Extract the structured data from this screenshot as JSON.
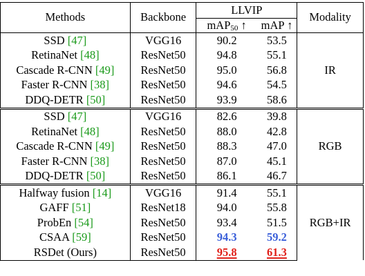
{
  "header": {
    "methods": "Methods",
    "backbone": "Backbone",
    "llvip": "LLVIP",
    "ap50_prefix": "mAP",
    "ap50_sub": "50",
    "ap50_arrow": " ↑",
    "map": "mAP ↑",
    "modality": "Modality"
  },
  "groups": [
    {
      "modality": "IR",
      "rows": [
        {
          "method": "SSD",
          "cite": "[47]",
          "backbone": "VGG16",
          "ap50": "90.2",
          "map": "53.5"
        },
        {
          "method": "RetinaNet",
          "cite": "[48]",
          "backbone": "ResNet50",
          "ap50": "94.8",
          "map": "55.1"
        },
        {
          "method": "Cascade R-CNN",
          "cite": "[49]",
          "backbone": "ResNet50",
          "ap50": "95.0",
          "map": "56.8"
        },
        {
          "method": "Faster R-CNN",
          "cite": "[38]",
          "backbone": "ResNet50",
          "ap50": "94.6",
          "map": "54.5"
        },
        {
          "method": "DDQ-DETR",
          "cite": "[50]",
          "backbone": "ResNet50",
          "ap50": "93.9",
          "map": "58.6"
        }
      ]
    },
    {
      "modality": "RGB",
      "rows": [
        {
          "method": "SSD",
          "cite": "[47]",
          "backbone": "VGG16",
          "ap50": "82.6",
          "map": "39.8"
        },
        {
          "method": "RetinaNet",
          "cite": "[48]",
          "backbone": "ResNet50",
          "ap50": "88.0",
          "map": "42.8"
        },
        {
          "method": "Cascade R-CNN",
          "cite": "[49]",
          "backbone": "ResNet50",
          "ap50": "88.3",
          "map": "47.0"
        },
        {
          "method": "Faster R-CNN",
          "cite": "[38]",
          "backbone": "ResNet50",
          "ap50": "87.0",
          "map": "45.1"
        },
        {
          "method": "DDQ-DETR",
          "cite": "[50]",
          "backbone": "ResNet50",
          "ap50": "86.1",
          "map": "46.7"
        }
      ]
    },
    {
      "modality": "RGB+IR",
      "rows": [
        {
          "method": "Halfway fusion",
          "cite": "[14]",
          "backbone": "VGG16",
          "ap50": "91.4",
          "map": "55.1"
        },
        {
          "method": "GAFF",
          "cite": "[51]",
          "backbone": "ResNet18",
          "ap50": "94.0",
          "map": "55.8"
        },
        {
          "method": "ProbEn",
          "cite": "[54]",
          "backbone": "ResNet50",
          "ap50": "93.4",
          "map": "51.5"
        },
        {
          "method": "CSAA",
          "cite": "[59]",
          "backbone": "ResNet50",
          "ap50": "94.3",
          "map": "59.2",
          "style": "second"
        },
        {
          "method": "RSDet (Ours)",
          "cite": "",
          "backbone": "ResNet50",
          "ap50": "95.8",
          "map": "61.3",
          "style": "best"
        }
      ]
    }
  ],
  "colors": {
    "citation": "#1a9a1a",
    "best": "#e0201a",
    "second": "#3a5fd9"
  }
}
